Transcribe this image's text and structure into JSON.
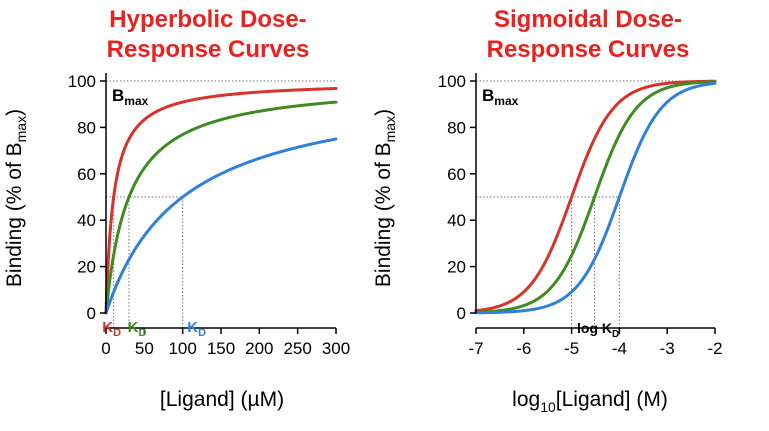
{
  "colors": {
    "title": "#e8231f",
    "red": "#d8322b",
    "green": "#3f8a22",
    "blue": "#2f7fdb",
    "axis": "#000000",
    "guide": "#707070"
  },
  "chart_data": [
    {
      "type": "line",
      "title_line1": "Hyperbolic Dose-",
      "title_line2": "Response Curves",
      "xlabel": "[Ligand] (µM)",
      "ylabel_main": "Binding (% of B",
      "ylabel_sub": "max",
      "ylabel_end": ")",
      "xlim": [
        0,
        300
      ],
      "ylim": [
        0,
        100
      ],
      "xticks": [
        0,
        50,
        100,
        150,
        200,
        250,
        300
      ],
      "yticks": [
        0,
        20,
        40,
        60,
        80,
        100
      ],
      "bmax_main": "B",
      "bmax_sub": "max",
      "bmax_value": 100,
      "half_value": 50,
      "series": [
        {
          "name": "red",
          "kd": 10,
          "kd_main": "K",
          "kd_sub": "D"
        },
        {
          "name": "green",
          "kd": 30,
          "kd_main": "K",
          "kd_sub": "D"
        },
        {
          "name": "blue",
          "kd": 100,
          "kd_main": "K",
          "kd_sub": "D"
        }
      ]
    },
    {
      "type": "line",
      "title_line1": "Sigmoidal Dose-",
      "title_line2": "Response Curves",
      "xlabel_main": "log",
      "xlabel_sub": "10",
      "xlabel_end": "[Ligand] (M)",
      "ylabel_main": "Binding (% of B",
      "ylabel_sub": "max",
      "ylabel_end": ")",
      "xlim": [
        -7,
        -2
      ],
      "ylim": [
        0,
        100
      ],
      "xticks": [
        -7,
        -6,
        -5,
        -4,
        -3,
        -2
      ],
      "yticks": [
        0,
        20,
        40,
        60,
        80,
        100
      ],
      "bmax_main": "B",
      "bmax_sub": "max",
      "bmax_value": 100,
      "half_value": 50,
      "logkd_main": "log K",
      "logkd_sub": "D",
      "series": [
        {
          "name": "red",
          "logkd": -5.0
        },
        {
          "name": "green",
          "logkd": -4.52
        },
        {
          "name": "blue",
          "logkd": -4.0
        }
      ]
    }
  ]
}
